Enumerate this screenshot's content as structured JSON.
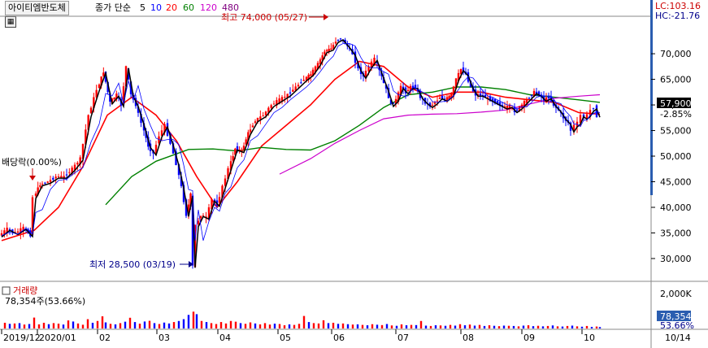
{
  "header": {
    "stock_name": "아이티엠반도체",
    "indicator_label": "종가 단순",
    "ma_periods": [
      "5",
      "10",
      "20",
      "60",
      "120",
      "480"
    ],
    "ma_colors": [
      "#000000",
      "#0000ff",
      "#ff0000",
      "#008000",
      "#cc00cc",
      "#800080"
    ],
    "lc_text": "LC:103.16",
    "hc_text": "HC:-21.76"
  },
  "icons": {
    "grid": "grid-icon"
  },
  "annotations": {
    "high": "최고 74,000 (05/27)",
    "low": "최저 28,500 (03/19)",
    "dividend": "배당락(0.00%)"
  },
  "price_panel": {
    "current_price": "57,900",
    "change_pct": "-2.85%"
  },
  "volume_panel": {
    "title": "거래량",
    "current_text": "78,354주(53.66%)",
    "axis_label": "2,000K",
    "current_value": "78,354",
    "pct": "53.66%"
  },
  "colors": {
    "up": "#ff0000",
    "down": "#0000ff",
    "ma60": "#008000",
    "ma120": "#cc00cc"
  },
  "chart_data": {
    "type": "candlestick",
    "y_axis": {
      "min": 26500,
      "max": 77000,
      "ticks": [
        "70,000",
        "65,000",
        "60,000",
        "55,000",
        "50,000",
        "45,000",
        "40,000",
        "35,000",
        "30,000"
      ]
    },
    "x_axis": {
      "labels": [
        "2019/12",
        "2020/01",
        "02",
        "03",
        "04",
        "05",
        "06",
        "07",
        "08",
        "09",
        "10",
        "10/14"
      ]
    },
    "price_path": [
      [
        0,
        34500
      ],
      [
        10,
        35800
      ],
      [
        20,
        35000
      ],
      [
        30,
        36000
      ],
      [
        38,
        34600
      ],
      [
        42,
        42000
      ],
      [
        50,
        44500
      ],
      [
        60,
        45000
      ],
      [
        70,
        46000
      ],
      [
        80,
        46000
      ],
      [
        90,
        47500
      ],
      [
        100,
        49500
      ],
      [
        110,
        58000
      ],
      [
        120,
        63000
      ],
      [
        128,
        66500
      ],
      [
        136,
        60500
      ],
      [
        144,
        62000
      ],
      [
        150,
        60000
      ],
      [
        156,
        67500
      ],
      [
        162,
        62000
      ],
      [
        168,
        60000
      ],
      [
        175,
        56500
      ],
      [
        183,
        52000
      ],
      [
        190,
        50500
      ],
      [
        197,
        54000
      ],
      [
        204,
        56000
      ],
      [
        211,
        52500
      ],
      [
        218,
        48500
      ],
      [
        224,
        44000
      ],
      [
        230,
        38500
      ],
      [
        235,
        42500
      ],
      [
        238,
        28500
      ],
      [
        242,
        36500
      ],
      [
        248,
        38500
      ],
      [
        255,
        38000
      ],
      [
        262,
        41500
      ],
      [
        268,
        40500
      ],
      [
        275,
        44000
      ],
      [
        282,
        47500
      ],
      [
        290,
        51500
      ],
      [
        298,
        51000
      ],
      [
        306,
        54500
      ],
      [
        315,
        57000
      ],
      [
        325,
        58000
      ],
      [
        335,
        60000
      ],
      [
        345,
        61000
      ],
      [
        355,
        62000
      ],
      [
        365,
        63500
      ],
      [
        375,
        65000
      ],
      [
        383,
        66000
      ],
      [
        392,
        68000
      ],
      [
        400,
        70500
      ],
      [
        408,
        71000
      ],
      [
        414,
        72500
      ],
      [
        420,
        73000
      ],
      [
        428,
        71500
      ],
      [
        435,
        70000
      ],
      [
        442,
        67000
      ],
      [
        448,
        65500
      ],
      [
        455,
        67500
      ],
      [
        462,
        69000
      ],
      [
        470,
        65500
      ],
      [
        476,
        63000
      ],
      [
        482,
        60000
      ],
      [
        488,
        61000
      ],
      [
        494,
        63500
      ],
      [
        500,
        62500
      ],
      [
        506,
        63500
      ],
      [
        512,
        63500
      ],
      [
        518,
        61500
      ],
      [
        524,
        60500
      ],
      [
        530,
        59800
      ],
      [
        536,
        60500
      ],
      [
        542,
        61500
      ],
      [
        548,
        61000
      ],
      [
        556,
        62000
      ],
      [
        562,
        65000
      ],
      [
        568,
        67000
      ],
      [
        574,
        66000
      ],
      [
        580,
        63500
      ],
      [
        586,
        62000
      ],
      [
        592,
        62000
      ],
      [
        598,
        61500
      ],
      [
        604,
        61000
      ],
      [
        610,
        60500
      ],
      [
        616,
        60000
      ],
      [
        622,
        59500
      ],
      [
        628,
        59800
      ],
      [
        634,
        58800
      ],
      [
        640,
        59500
      ],
      [
        646,
        60500
      ],
      [
        652,
        61500
      ],
      [
        658,
        62500
      ],
      [
        664,
        62000
      ],
      [
        670,
        61000
      ],
      [
        676,
        61500
      ],
      [
        682,
        60000
      ],
      [
        688,
        59000
      ],
      [
        694,
        57500
      ],
      [
        700,
        56500
      ],
      [
        704,
        55000
      ],
      [
        708,
        56000
      ],
      [
        712,
        56500
      ],
      [
        716,
        58000
      ],
      [
        720,
        57500
      ],
      [
        724,
        58000
      ],
      [
        728,
        59000
      ],
      [
        732,
        59500
      ],
      [
        736,
        57900
      ]
    ],
    "ma_lines": {
      "ma20": [
        [
          0,
          33500
        ],
        [
          40,
          35500
        ],
        [
          70,
          40000
        ],
        [
          100,
          48000
        ],
        [
          130,
          58000
        ],
        [
          160,
          61500
        ],
        [
          190,
          58000
        ],
        [
          215,
          53000
        ],
        [
          240,
          46000
        ],
        [
          265,
          40000
        ],
        [
          290,
          45000
        ],
        [
          320,
          52000
        ],
        [
          350,
          56000
        ],
        [
          380,
          60000
        ],
        [
          410,
          65000
        ],
        [
          440,
          68500
        ],
        [
          470,
          67500
        ],
        [
          500,
          63500
        ],
        [
          530,
          61500
        ],
        [
          560,
          62500
        ],
        [
          590,
          62500
        ],
        [
          620,
          61500
        ],
        [
          650,
          61000
        ],
        [
          680,
          60500
        ],
        [
          710,
          58500
        ],
        [
          736,
          58200
        ]
      ],
      "ma60": [
        [
          128,
          40500
        ],
        [
          160,
          46000
        ],
        [
          190,
          49000
        ],
        [
          230,
          51300
        ],
        [
          260,
          51400
        ],
        [
          290,
          51000
        ],
        [
          320,
          51700
        ],
        [
          350,
          51300
        ],
        [
          380,
          51200
        ],
        [
          410,
          53000
        ],
        [
          440,
          56000
        ],
        [
          470,
          59500
        ],
        [
          500,
          62000
        ],
        [
          530,
          62500
        ],
        [
          560,
          63500
        ],
        [
          590,
          63500
        ],
        [
          620,
          63000
        ],
        [
          650,
          62000
        ],
        [
          680,
          61500
        ],
        [
          710,
          61000
        ],
        [
          736,
          60500
        ]
      ],
      "ma120": [
        [
          342,
          46500
        ],
        [
          380,
          49500
        ],
        [
          410,
          52500
        ],
        [
          440,
          55000
        ],
        [
          470,
          57300
        ],
        [
          500,
          58000
        ],
        [
          530,
          58200
        ],
        [
          560,
          58300
        ],
        [
          590,
          58600
        ],
        [
          620,
          59000
        ],
        [
          650,
          60200
        ],
        [
          680,
          61300
        ],
        [
          710,
          61700
        ],
        [
          736,
          62000
        ]
      ]
    },
    "volume": {
      "max": 2000000,
      "bars": [
        [
          4,
          320000,
          1
        ],
        [
          10,
          260000,
          0
        ],
        [
          16,
          280000,
          1
        ],
        [
          22,
          300000,
          0
        ],
        [
          28,
          220000,
          1
        ],
        [
          34,
          250000,
          0
        ],
        [
          40,
          610000,
          1
        ],
        [
          46,
          230000,
          1
        ],
        [
          52,
          320000,
          1
        ],
        [
          58,
          240000,
          0
        ],
        [
          64,
          300000,
          1
        ],
        [
          70,
          270000,
          1
        ],
        [
          76,
          220000,
          0
        ],
        [
          82,
          450000,
          1
        ],
        [
          88,
          390000,
          0
        ],
        [
          94,
          280000,
          1
        ],
        [
          100,
          210000,
          1
        ],
        [
          106,
          520000,
          1
        ],
        [
          112,
          320000,
          0
        ],
        [
          118,
          420000,
          1
        ],
        [
          124,
          680000,
          1
        ],
        [
          128,
          340000,
          0
        ],
        [
          134,
          260000,
          1
        ],
        [
          140,
          230000,
          0
        ],
        [
          146,
          300000,
          1
        ],
        [
          152,
          380000,
          0
        ],
        [
          158,
          600000,
          1
        ],
        [
          164,
          360000,
          0
        ],
        [
          170,
          270000,
          1
        ],
        [
          176,
          390000,
          0
        ],
        [
          182,
          430000,
          1
        ],
        [
          188,
          300000,
          0
        ],
        [
          194,
          250000,
          1
        ],
        [
          200,
          330000,
          0
        ],
        [
          206,
          280000,
          0
        ],
        [
          212,
          360000,
          1
        ],
        [
          218,
          420000,
          0
        ],
        [
          224,
          520000,
          0
        ],
        [
          230,
          760000,
          0
        ],
        [
          236,
          940000,
          1
        ],
        [
          240,
          800000,
          0
        ],
        [
          246,
          420000,
          1
        ],
        [
          252,
          360000,
          0
        ],
        [
          258,
          300000,
          1
        ],
        [
          264,
          250000,
          1
        ],
        [
          270,
          360000,
          1
        ],
        [
          276,
          280000,
          1
        ],
        [
          282,
          420000,
          1
        ],
        [
          288,
          380000,
          1
        ],
        [
          294,
          300000,
          0
        ],
        [
          300,
          260000,
          1
        ],
        [
          306,
          340000,
          1
        ],
        [
          312,
          280000,
          0
        ],
        [
          318,
          230000,
          1
        ],
        [
          324,
          300000,
          1
        ],
        [
          330,
          220000,
          1
        ],
        [
          336,
          270000,
          0
        ],
        [
          342,
          250000,
          1
        ],
        [
          348,
          180000,
          1
        ],
        [
          354,
          230000,
          0
        ],
        [
          360,
          200000,
          1
        ],
        [
          366,
          260000,
          1
        ],
        [
          372,
          700000,
          1
        ],
        [
          378,
          360000,
          0
        ],
        [
          384,
          300000,
          1
        ],
        [
          390,
          280000,
          1
        ],
        [
          396,
          460000,
          1
        ],
        [
          402,
          300000,
          0
        ],
        [
          408,
          320000,
          1
        ],
        [
          414,
          260000,
          0
        ],
        [
          420,
          280000,
          1
        ],
        [
          426,
          240000,
          0
        ],
        [
          432,
          220000,
          1
        ],
        [
          438,
          230000,
          0
        ],
        [
          444,
          200000,
          1
        ],
        [
          450,
          180000,
          0
        ],
        [
          456,
          240000,
          1
        ],
        [
          462,
          210000,
          0
        ],
        [
          468,
          190000,
          1
        ],
        [
          474,
          250000,
          0
        ],
        [
          480,
          170000,
          1
        ],
        [
          486,
          150000,
          0
        ],
        [
          492,
          230000,
          1
        ],
        [
          498,
          180000,
          0
        ],
        [
          504,
          200000,
          1
        ],
        [
          510,
          190000,
          0
        ],
        [
          516,
          420000,
          1
        ],
        [
          522,
          160000,
          0
        ],
        [
          528,
          140000,
          1
        ],
        [
          534,
          180000,
          0
        ],
        [
          540,
          170000,
          1
        ],
        [
          546,
          150000,
          0
        ],
        [
          552,
          200000,
          1
        ],
        [
          558,
          160000,
          0
        ],
        [
          564,
          240000,
          1
        ],
        [
          570,
          180000,
          0
        ],
        [
          576,
          220000,
          1
        ],
        [
          582,
          160000,
          0
        ],
        [
          588,
          200000,
          1
        ],
        [
          594,
          140000,
          0
        ],
        [
          600,
          180000,
          1
        ],
        [
          606,
          150000,
          0
        ],
        [
          612,
          130000,
          1
        ],
        [
          618,
          160000,
          0
        ],
        [
          624,
          150000,
          1
        ],
        [
          630,
          140000,
          0
        ],
        [
          636,
          120000,
          1
        ],
        [
          642,
          160000,
          0
        ],
        [
          648,
          180000,
          1
        ],
        [
          654,
          130000,
          0
        ],
        [
          660,
          150000,
          1
        ],
        [
          666,
          120000,
          0
        ],
        [
          672,
          140000,
          1
        ],
        [
          678,
          170000,
          0
        ],
        [
          684,
          120000,
          1
        ],
        [
          690,
          110000,
          0
        ],
        [
          696,
          140000,
          1
        ],
        [
          702,
          160000,
          0
        ],
        [
          708,
          120000,
          1
        ],
        [
          714,
          100000,
          0
        ],
        [
          720,
          140000,
          1
        ],
        [
          726,
          90000,
          0
        ],
        [
          732,
          110000,
          1
        ],
        [
          736,
          78354,
          0
        ]
      ]
    }
  }
}
